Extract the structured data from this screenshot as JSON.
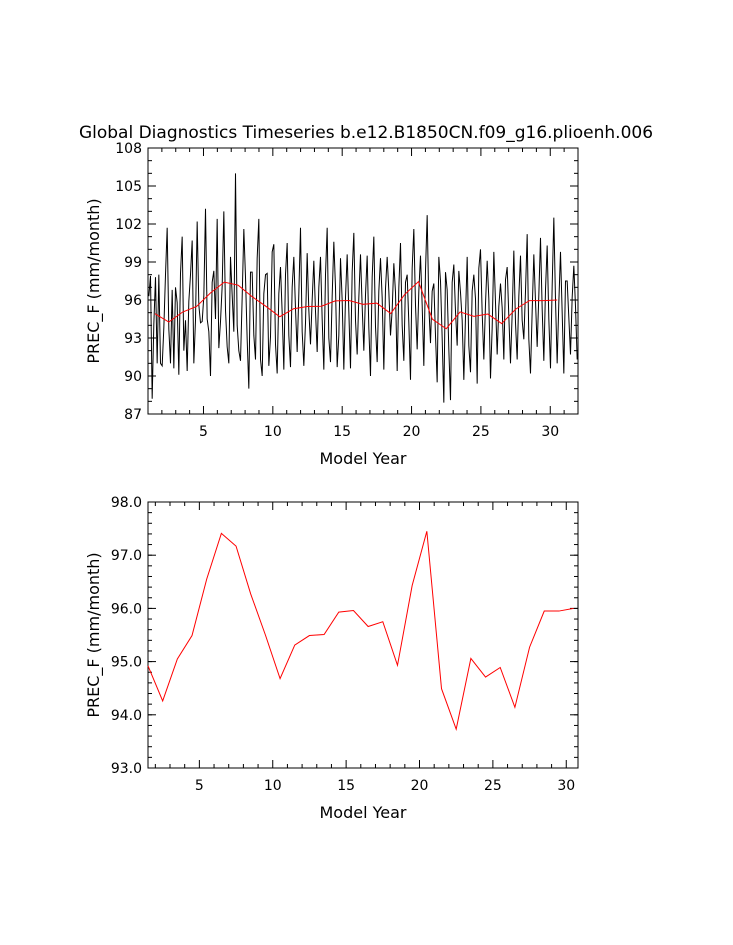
{
  "title": "Global Diagnostics Timeseries b.e12.B1850CN.f09_g16.plioenh.006",
  "chart_data": [
    {
      "type": "line",
      "xlabel": "Model Year",
      "ylabel": "PREC_F (mm/month)",
      "xlim": [
        1,
        32
      ],
      "ylim": [
        87,
        108
      ],
      "xticks": [
        "5",
        "10",
        "15",
        "20",
        "25",
        "30"
      ],
      "yticks": [
        "87",
        "90",
        "93",
        "96",
        "99",
        "102",
        "105",
        "108"
      ],
      "series": [
        {
          "color": "#000000",
          "values": [
            96.3,
            97.9,
            88.2,
            94.1,
            97.8,
            91.0,
            98.0,
            91.0,
            90.8,
            93.8,
            98.0,
            101.7,
            93.7,
            91.0,
            96.8,
            90.6,
            97.0,
            95.8,
            90.1,
            98.1,
            101.0,
            92.0,
            94.4,
            90.4,
            95.9,
            98.0,
            100.7,
            91.0,
            94.4,
            102.2,
            95.6,
            94.2,
            94.3,
            96.3,
            103.2,
            94.5,
            93.5,
            90.0,
            97.4,
            98.3,
            94.5,
            102.4,
            92.2,
            94.3,
            97.1,
            103.0,
            95.2,
            92.3,
            91.0,
            99.4,
            96.4,
            93.5,
            106.0,
            94.0,
            92.0,
            91.2,
            96.2,
            101.6,
            97.8,
            92.9,
            89.0,
            98.2,
            98.2,
            93.2,
            91.3,
            99.3,
            102.4,
            91.3,
            90.0,
            96.5,
            98.0,
            98.1,
            90.8,
            93.1,
            99.8,
            100.4,
            92.5,
            90.2,
            96.5,
            98.6,
            95.0,
            90.5,
            98.0,
            100.5,
            93.2,
            90.7,
            97.0,
            99.4,
            95.3,
            91.9,
            96.5,
            101.7,
            93.5,
            90.8,
            94.2,
            99.7,
            95.2,
            92.5,
            96.0,
            99.1,
            95.1,
            91.9,
            97.0,
            99.4,
            94.5,
            90.5,
            98.0,
            101.7,
            93.0,
            91.1,
            96.3,
            100.6,
            97.0,
            90.7,
            93.2,
            99.3,
            96.0,
            90.5,
            96.2,
            99.6,
            95.1,
            90.6,
            98.2,
            101.3,
            94.4,
            91.7,
            96.2,
            99.6,
            95.5,
            92.0,
            96.4,
            99.5,
            93.8,
            90.0,
            97.8,
            101.0,
            93.9,
            91.1,
            96.7,
            99.3,
            96.2,
            90.5,
            96.9,
            99.4,
            96.7,
            93.2,
            95.2,
            98.9,
            96.6,
            90.4,
            97.0,
            100.5,
            94.0,
            91.2,
            97.4,
            98.0,
            94.2,
            89.7,
            98.5,
            101.6,
            95.6,
            92.1,
            96.7,
            99.5,
            95.6,
            90.8,
            98.3,
            102.7,
            95.5,
            92.6,
            96.7,
            97.3,
            93.2,
            89.5,
            99.4,
            97.5,
            93.0,
            87.9,
            98.2,
            96.8,
            92.1,
            88.1,
            97.4,
            98.8,
            95.1,
            92.4,
            98.3,
            96.6,
            94.4,
            89.7,
            94.7,
            99.4,
            92.4,
            90.3,
            96.7,
            98.0,
            96.1,
            89.4,
            98.5,
            100.0,
            95.0,
            91.3,
            95.7,
            99.1,
            96.1,
            89.8,
            93.8,
            99.8,
            95.8,
            91.7,
            95.5,
            97.3,
            95.4,
            91.3,
            97.6,
            98.6,
            94.7,
            91.0,
            94.9,
            99.9,
            94.2,
            91.3,
            96.3,
            99.5,
            94.4,
            92.9,
            96.7,
            101.2,
            92.9,
            90.2,
            95.1,
            99.6,
            95.9,
            92.3,
            96.4,
            100.9,
            95.3,
            91.2,
            96.8,
            100.3,
            94.5,
            90.6,
            97.1,
            102.5,
            96.0,
            91.0,
            95.8,
            99.8,
            95.0,
            90.2,
            97.5,
            97.5,
            94.6,
            91.7,
            96.2,
            98.7,
            95.5,
            91.3
          ]
        },
        {
          "color": "#ff0000",
          "x": [
            1.5,
            2.5,
            3.5,
            4.5,
            5.5,
            6.5,
            7.5,
            8.5,
            9.5,
            10.5,
            11.5,
            12.5,
            13.5,
            14.5,
            15.5,
            16.5,
            17.5,
            18.5,
            19.5,
            20.5,
            21.5,
            22.5,
            23.5,
            24.5,
            25.5,
            26.5,
            27.5,
            28.5,
            29.5,
            30.5
          ],
          "values": [
            94.92,
            94.26,
            95.05,
            95.49,
            96.55,
            97.41,
            97.17,
            96.27,
            95.5,
            94.68,
            95.31,
            95.49,
            95.51,
            95.93,
            95.96,
            95.66,
            95.75,
            94.93,
            96.43,
            97.45,
            94.49,
            93.73,
            95.06,
            94.71,
            94.89,
            94.14,
            95.27,
            95.95,
            95.95,
            96.0
          ]
        }
      ]
    },
    {
      "type": "line",
      "xlabel": "Model Year",
      "ylabel": "PREC_F (mm/month)",
      "xlim": [
        1.5,
        30.8
      ],
      "ylim": [
        93,
        98
      ],
      "xticks": [
        "5",
        "10",
        "15",
        "20",
        "25",
        "30"
      ],
      "yticks": [
        "93.0",
        "94.0",
        "95.0",
        "96.0",
        "97.0",
        "98.0"
      ],
      "series": [
        {
          "color": "#ff0000",
          "x": [
            1.5,
            2.5,
            3.5,
            4.5,
            5.5,
            6.5,
            7.5,
            8.5,
            9.5,
            10.5,
            11.5,
            12.5,
            13.5,
            14.5,
            15.5,
            16.5,
            17.5,
            18.5,
            19.5,
            20.5,
            21.5,
            22.5,
            23.5,
            24.5,
            25.5,
            26.5,
            27.5,
            28.5,
            29.5,
            30.5
          ],
          "values": [
            94.92,
            94.26,
            95.05,
            95.49,
            96.55,
            97.41,
            97.17,
            96.27,
            95.5,
            94.68,
            95.31,
            95.49,
            95.51,
            95.93,
            95.96,
            95.66,
            95.75,
            94.93,
            96.43,
            97.45,
            94.49,
            93.73,
            95.06,
            94.71,
            94.89,
            94.14,
            95.27,
            95.95,
            95.95,
            96.0
          ]
        }
      ]
    }
  ]
}
